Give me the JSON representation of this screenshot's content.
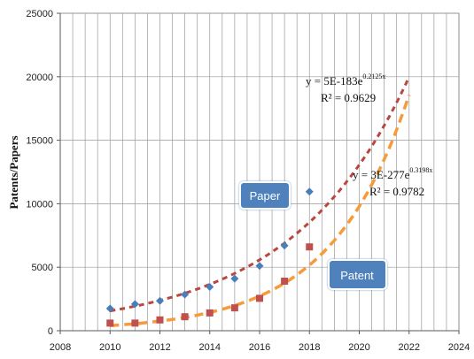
{
  "chart_data": {
    "type": "scatter",
    "title": "",
    "xlabel": "",
    "ylabel": "Patents/Papers",
    "xlim": [
      2008,
      2024
    ],
    "ylim": [
      0,
      25000
    ],
    "x_ticks": [
      2008,
      2010,
      2012,
      2014,
      2016,
      2018,
      2020,
      2022,
      2024
    ],
    "y_ticks": [
      0,
      5000,
      10000,
      15000,
      20000,
      25000
    ],
    "grid": "vertical-and-horizontal",
    "series": [
      {
        "key": "paper",
        "color": "#4a7ebb",
        "marker": "diamond",
        "x": [
          2010,
          2011,
          2012,
          2013,
          2014,
          2015,
          2016,
          2017,
          2018
        ],
        "y": [
          1750,
          2100,
          2350,
          2850,
          3450,
          4100,
          5100,
          6700,
          10950
        ]
      },
      {
        "key": "patent",
        "color": "#c0504d",
        "marker": "square",
        "x": [
          2010,
          2011,
          2012,
          2013,
          2014,
          2015,
          2016,
          2017,
          2018
        ],
        "y": [
          600,
          600,
          850,
          1100,
          1400,
          1800,
          2550,
          3900,
          6600
        ]
      }
    ],
    "trendlines": [
      {
        "series": "paper",
        "type": "exponential",
        "color": "#b9473f",
        "x_range": [
          2010,
          2022
        ],
        "y_at_start": 1560,
        "b": 0.2125,
        "equation_base": "y = 5E-183e",
        "equation_exp": "0.2125x",
        "r2": "R² = 0.9629"
      },
      {
        "series": "patent",
        "type": "exponential",
        "color": "#f79a3b",
        "x_range": [
          2010,
          2022
        ],
        "y_at_start": 400,
        "b": 0.3198,
        "equation_base": "y = 3E-277e",
        "equation_exp": "0.3198x",
        "r2": "R² = 0.9782"
      }
    ],
    "annotations": [
      {
        "text": "Paper",
        "fill": "#4f81bd",
        "stroke": "#ffffff"
      },
      {
        "text": "Patent",
        "fill": "#4f81bd",
        "stroke": "#ffffff"
      }
    ]
  }
}
